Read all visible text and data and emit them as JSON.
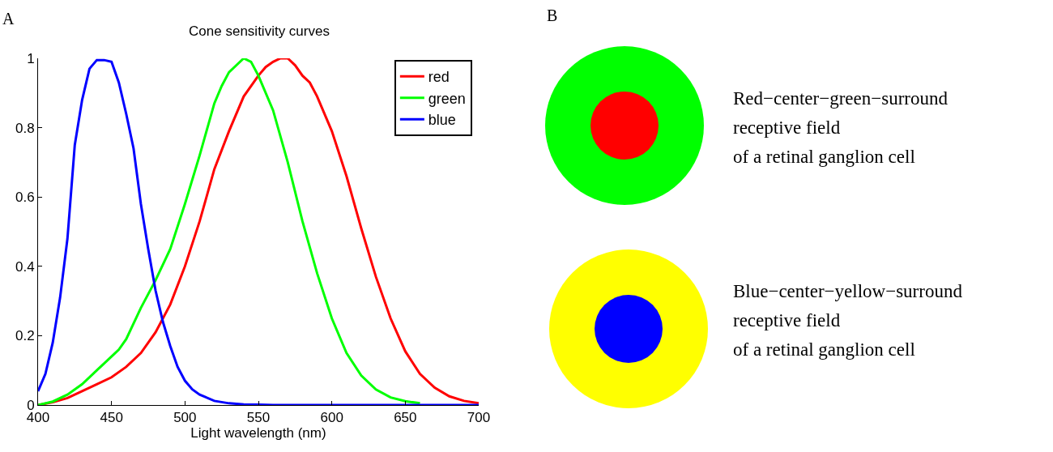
{
  "chart_data": [
    {
      "type": "line",
      "title": "Cone sensitivity curves",
      "xlabel": "Light wavelength (nm)",
      "annotations": [
        "A"
      ],
      "xlim": [
        400,
        700
      ],
      "ylim": [
        0,
        1
      ],
      "xticks": [
        400,
        450,
        500,
        550,
        600,
        650,
        700
      ],
      "yticks": [
        0,
        0.2,
        0.4,
        0.6,
        0.8,
        1
      ],
      "legend": "top right",
      "grid": false,
      "marker": "none",
      "line_style": "solid",
      "series": [
        {
          "name": "red",
          "color": "#ff0000",
          "x": [
            400,
            410,
            420,
            430,
            440,
            450,
            460,
            470,
            480,
            490,
            500,
            510,
            520,
            530,
            540,
            550,
            555,
            560,
            565,
            570,
            575,
            580,
            585,
            590,
            600,
            610,
            620,
            630,
            640,
            650,
            660,
            670,
            680,
            690,
            700
          ],
          "values": [
            0,
            0.008,
            0.02,
            0.04,
            0.06,
            0.08,
            0.11,
            0.15,
            0.21,
            0.29,
            0.4,
            0.53,
            0.68,
            0.79,
            0.89,
            0.95,
            0.975,
            0.99,
            1,
            1,
            0.98,
            0.95,
            0.93,
            0.89,
            0.79,
            0.66,
            0.51,
            0.37,
            0.25,
            0.155,
            0.09,
            0.05,
            0.025,
            0.012,
            0.005
          ]
        },
        {
          "name": "green",
          "color": "#00ff00",
          "x": [
            400,
            410,
            420,
            430,
            440,
            450,
            455,
            460,
            470,
            480,
            490,
            500,
            510,
            520,
            525,
            530,
            540,
            545,
            550,
            560,
            570,
            580,
            590,
            600,
            610,
            620,
            630,
            640,
            650,
            660
          ],
          "values": [
            0,
            0.01,
            0.03,
            0.06,
            0.1,
            0.14,
            0.16,
            0.19,
            0.28,
            0.36,
            0.45,
            0.58,
            0.72,
            0.87,
            0.92,
            0.96,
            1,
            0.99,
            0.95,
            0.85,
            0.7,
            0.53,
            0.38,
            0.25,
            0.15,
            0.085,
            0.045,
            0.022,
            0.011,
            0.005
          ]
        },
        {
          "name": "blue",
          "color": "#0000ff",
          "x": [
            400,
            405,
            410,
            415,
            420,
            425,
            430,
            435,
            440,
            445,
            450,
            455,
            460,
            465,
            470,
            475,
            480,
            485,
            490,
            495,
            500,
            505,
            510,
            520,
            530,
            540,
            550,
            560,
            600,
            650,
            700
          ],
          "values": [
            0.04,
            0.09,
            0.18,
            0.31,
            0.48,
            0.75,
            0.88,
            0.97,
            0.995,
            0.995,
            0.99,
            0.93,
            0.84,
            0.74,
            0.58,
            0.45,
            0.33,
            0.24,
            0.17,
            0.11,
            0.07,
            0.045,
            0.03,
            0.012,
            0.005,
            0.002,
            0.001,
            0,
            0,
            0,
            0
          ]
        }
      ]
    },
    {
      "type": "other",
      "annotations": [
        "B",
        "Red−center−green−surround\nreceptive field\nof a retinal ganglion cell",
        "Blue−center−yellow−surround\nreceptive field\nof a retinal ganglion cell"
      ]
    }
  ]
}
